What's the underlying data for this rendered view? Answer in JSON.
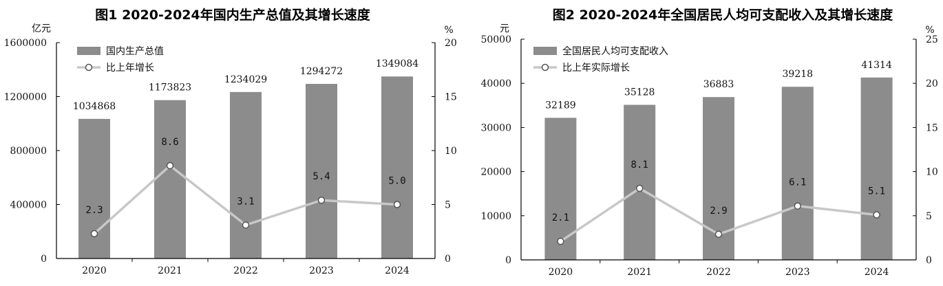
{
  "chart_data": [
    {
      "type": "bar",
      "title": "图1 2020-2024年国内生产总值及其增长速度",
      "categories": [
        "2020",
        "2021",
        "2022",
        "2023",
        "2024"
      ],
      "ylabel_left": "亿元",
      "ylabel_right": "%",
      "ylim_left": [
        0,
        1600000
      ],
      "yticks_left": [
        "0",
        "400000",
        "800000",
        "1200000",
        "1600000"
      ],
      "ylim_right": [
        0,
        20
      ],
      "yticks_right": [
        "0",
        "5",
        "10",
        "15",
        "20"
      ],
      "grid": false,
      "legend_position": "top-left",
      "bar_color": "#8c8c8c",
      "line_color": "#c8c8c8",
      "series": [
        {
          "name": "国内生产总值",
          "type": "bar",
          "axis": "left",
          "values": [
            1034868,
            1173823,
            1234029,
            1294272,
            1349084
          ],
          "labels": [
            "1034868",
            "1173823",
            "1234029",
            "1294272",
            "1349084"
          ]
        },
        {
          "name": "比上年增长",
          "type": "line",
          "axis": "right",
          "values": [
            2.3,
            8.6,
            3.1,
            5.4,
            5.0
          ],
          "labels": [
            "2.3",
            "8.6",
            "3.1",
            "5.4",
            "5.0"
          ]
        }
      ]
    },
    {
      "type": "bar",
      "title": "图2 2020-2024年全国居民人均可支配收入及其增长速度",
      "categories": [
        "2020",
        "2021",
        "2022",
        "2023",
        "2024"
      ],
      "ylabel_left": "元",
      "ylabel_right": "%",
      "ylim_left": [
        0,
        50000
      ],
      "yticks_left": [
        "0",
        "10000",
        "20000",
        "30000",
        "40000",
        "50000"
      ],
      "ylim_right": [
        0,
        25
      ],
      "yticks_right": [
        "0",
        "5",
        "10",
        "15",
        "20",
        "25"
      ],
      "grid": false,
      "legend_position": "top-left",
      "bar_color": "#8c8c8c",
      "line_color": "#c8c8c8",
      "series": [
        {
          "name": "全国居民人均可支配收入",
          "type": "bar",
          "axis": "left",
          "values": [
            32189,
            35128,
            36883,
            39218,
            41314
          ],
          "labels": [
            "32189",
            "35128",
            "36883",
            "39218",
            "41314"
          ]
        },
        {
          "name": "比上年实际增长",
          "type": "line",
          "axis": "right",
          "values": [
            2.1,
            8.1,
            2.9,
            6.1,
            5.1
          ],
          "labels": [
            "2.1",
            "8.1",
            "2.9",
            "6.1",
            "5.1"
          ]
        }
      ]
    }
  ]
}
